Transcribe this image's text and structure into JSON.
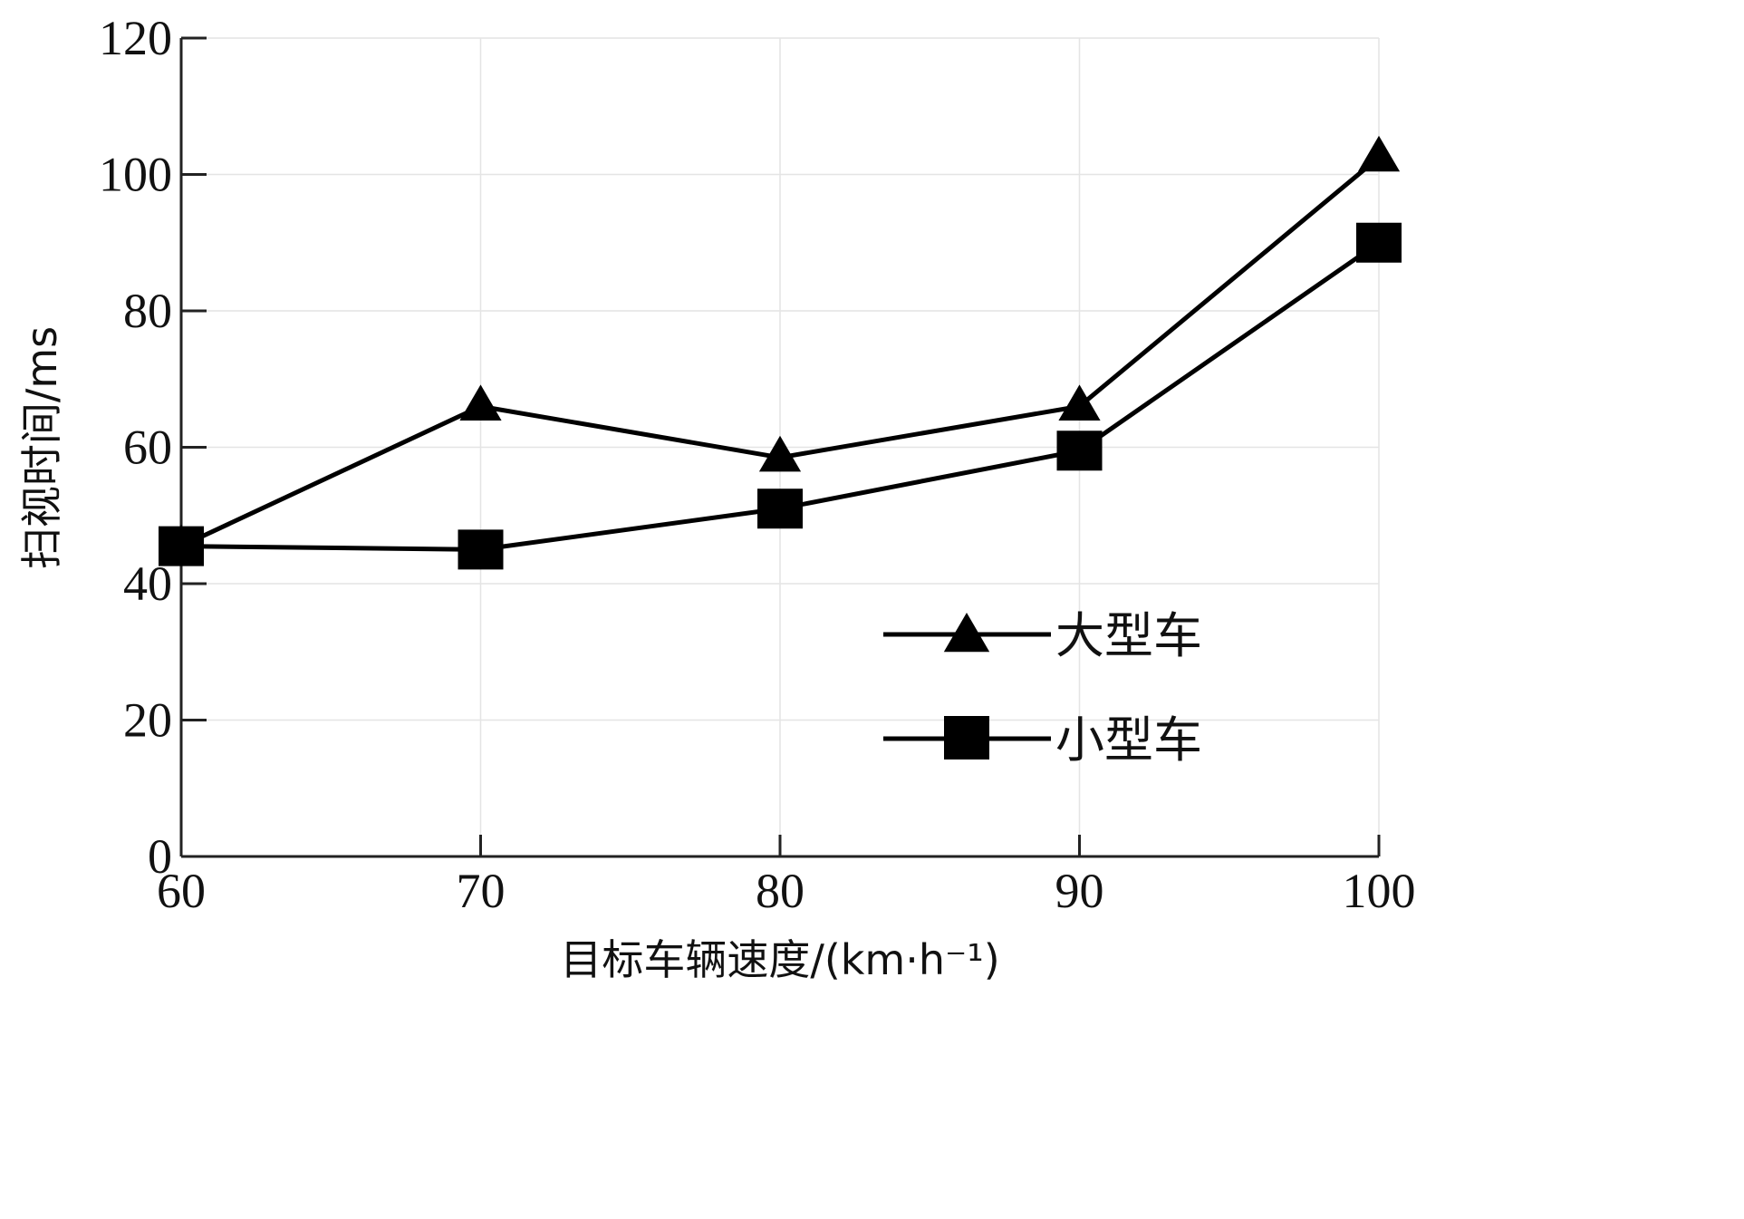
{
  "chart_data": {
    "type": "line",
    "xlabel": "目标车辆速度/(km·h⁻¹)",
    "ylabel": "扫视时间/ms",
    "x": [
      60,
      70,
      80,
      90,
      100
    ],
    "x_ticks": [
      "60",
      "70",
      "80",
      "90",
      "100"
    ],
    "y_ticks": [
      "0",
      "20",
      "40",
      "60",
      "80",
      "100",
      "120"
    ],
    "xlim": [
      60,
      100
    ],
    "ylim": [
      0,
      120
    ],
    "grid": true,
    "legend_position": "lower-right",
    "series": [
      {
        "name": "大型车",
        "marker": "triangle",
        "color": "#000000",
        "values": [
          45.5,
          66,
          58.5,
          66,
          102.5
        ]
      },
      {
        "name": "小型车",
        "marker": "square",
        "color": "#000000",
        "values": [
          45.5,
          45,
          51,
          59.5,
          90
        ]
      }
    ]
  }
}
